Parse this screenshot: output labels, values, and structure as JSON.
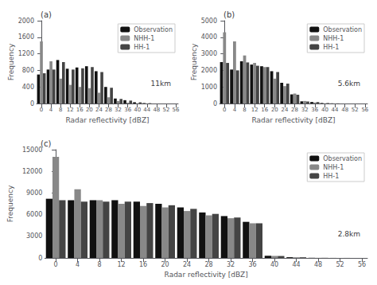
{
  "chart_data": [
    {
      "type": "bar",
      "title": "(a)",
      "xlabel": "Radar reflectivity [dBZ]",
      "ylabel": "Frequency",
      "annotations": [
        "11km"
      ],
      "x": [
        0,
        4,
        8,
        12,
        16,
        20,
        24,
        28,
        32,
        36,
        40,
        44
      ],
      "series": [
        {
          "name": "Observation",
          "color": "#111111",
          "values": [
            700,
            820,
            1050,
            840,
            870,
            900,
            780,
            400,
            120,
            80,
            30,
            10
          ]
        },
        {
          "name": "NHH-1",
          "color": "#888888",
          "values": [
            1500,
            1020,
            600,
            450,
            400,
            370,
            260,
            150,
            60,
            20,
            5,
            1
          ]
        },
        {
          "name": "HH-1",
          "color": "#444444",
          "values": [
            730,
            820,
            1000,
            820,
            850,
            880,
            760,
            380,
            110,
            70,
            28,
            8
          ]
        }
      ],
      "xlim": [
        -2,
        57
      ],
      "xticks": [
        0,
        4,
        8,
        12,
        16,
        20,
        24,
        28,
        32,
        36,
        40,
        44,
        48,
        52,
        56
      ],
      "ylim": [
        0,
        2000
      ],
      "yticks": [
        0,
        400,
        800,
        1200,
        1600,
        2000
      ],
      "grid": false,
      "legend": "upper right"
    },
    {
      "type": "bar",
      "title": "(b)",
      "xlabel": "Radar reflectivity [dBZ]",
      "ylabel": "Frequency",
      "annotations": [
        "5.6km"
      ],
      "x": [
        0,
        4,
        8,
        12,
        16,
        20,
        24,
        28,
        32,
        36,
        40,
        44
      ],
      "series": [
        {
          "name": "Observation",
          "color": "#111111",
          "values": [
            2500,
            2050,
            2550,
            2350,
            2250,
            1950,
            1250,
            550,
            130,
            90,
            30,
            10
          ]
        },
        {
          "name": "NHH-1",
          "color": "#888888",
          "values": [
            4300,
            3750,
            2900,
            2450,
            2200,
            1500,
            1050,
            600,
            150,
            60,
            10,
            2
          ]
        },
        {
          "name": "HH-1",
          "color": "#444444",
          "values": [
            2450,
            2000,
            2480,
            2280,
            2200,
            1900,
            1200,
            530,
            120,
            85,
            28,
            8
          ]
        }
      ],
      "xlim": [
        -2,
        57
      ],
      "xticks": [
        0,
        4,
        8,
        12,
        16,
        20,
        24,
        28,
        32,
        36,
        40,
        44,
        48,
        52,
        56
      ],
      "ylim": [
        0,
        5000
      ],
      "yticks": [
        0,
        1000,
        2000,
        3000,
        4000,
        5000
      ],
      "grid": false,
      "legend": "upper right"
    },
    {
      "type": "bar",
      "title": "(c)",
      "xlabel": "Radar reflectivity [dBZ]",
      "ylabel": "Frequency",
      "annotations": [
        "2.8km"
      ],
      "x": [
        0,
        4,
        8,
        12,
        16,
        20,
        24,
        28,
        32,
        36,
        40,
        44,
        48,
        52
      ],
      "series": [
        {
          "name": "Observation",
          "color": "#111111",
          "values": [
            8200,
            8000,
            8000,
            8000,
            7800,
            7500,
            7000,
            6300,
            5800,
            5000,
            300,
            100,
            20,
            5
          ]
        },
        {
          "name": "NHH-1",
          "color": "#888888",
          "values": [
            14000,
            9500,
            8000,
            7500,
            7200,
            7000,
            6500,
            5900,
            5500,
            4800,
            280,
            90,
            15,
            3
          ]
        },
        {
          "name": "HH-1",
          "color": "#444444",
          "values": [
            8000,
            7800,
            7800,
            7800,
            7600,
            7300,
            6800,
            6100,
            5600,
            4800,
            270,
            90,
            18,
            4
          ]
        }
      ],
      "xlim": [
        -2,
        57
      ],
      "xticks": [
        0,
        4,
        8,
        12,
        16,
        20,
        24,
        28,
        32,
        36,
        40,
        44,
        48,
        52,
        56
      ],
      "ylim": [
        0,
        15000
      ],
      "yticks": [
        0,
        3000,
        6000,
        9000,
        12000,
        15000
      ],
      "grid": false,
      "legend": "upper right"
    }
  ]
}
